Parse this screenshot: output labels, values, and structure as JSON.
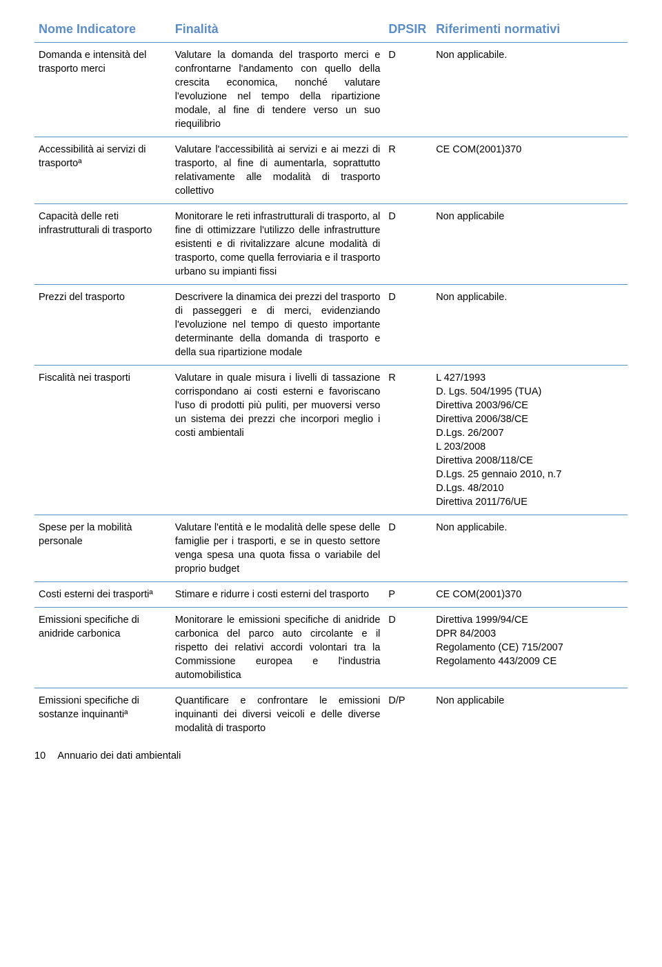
{
  "colors": {
    "header_text": "#5b8dc7",
    "row_border": "#5b8dc7",
    "body_text": "#000000",
    "background": "#ffffff"
  },
  "typography": {
    "header_fontsize_pt": 14,
    "body_fontsize_pt": 11,
    "header_weight": "bold",
    "font_family": "Arial"
  },
  "table": {
    "columns": [
      {
        "key": "nome",
        "label": "Nome Indicatore",
        "width_pct": 23
      },
      {
        "key": "final",
        "label": "Finalità",
        "width_pct": 36
      },
      {
        "key": "dpsir",
        "label": "DPSIR",
        "width_pct": 8
      },
      {
        "key": "rif",
        "label": "Riferimenti normativi",
        "width_pct": 33
      }
    ],
    "rows": [
      {
        "nome": "Domanda e intensità del trasporto merci",
        "final": "Valutare la domanda del trasporto merci e confrontarne l'andamento con quello della crescita economica, nonché valutare l'evoluzione nel tempo della ripartizione modale, al fine di tendere verso un suo riequilibrio",
        "dpsir": "D",
        "rif": "Non applicabile."
      },
      {
        "nome": "Accessibilità ai servizi di trasportoª",
        "final": "Valutare l'accessibilità ai servizi e ai mezzi di trasporto, al fine di aumentarla, soprattutto relativamente alle modalità di trasporto collettivo",
        "dpsir": "R",
        "rif": "CE COM(2001)370"
      },
      {
        "nome": "Capacità delle reti infrastrutturali di trasporto",
        "final": "Monitorare le reti infrastrutturali di trasporto, al fine di ottimizzare l'utilizzo delle infrastrutture esistenti e di rivitalizzare alcune modalità di trasporto, come quella ferroviaria e il trasporto urbano su impianti fissi",
        "dpsir": "D",
        "rif": "Non applicabile"
      },
      {
        "nome": "Prezzi del trasporto",
        "final": "Descrivere la dinamica dei prezzi del trasporto di passeggeri e di merci, evidenziando l'evoluzione nel tempo di questo importante determinante della domanda di trasporto e della sua ripartizione modale",
        "dpsir": "D",
        "rif": "Non applicabile."
      },
      {
        "nome": "Fiscalità nei trasporti",
        "final": "Valutare in quale misura i livelli di tassazione corrispondano ai costi esterni e favoriscano l'uso di prodotti più puliti, per muoversi verso un sistema dei prezzi che incorpori meglio i costi ambientali",
        "dpsir": "R",
        "rif": "L 427/1993\nD. Lgs. 504/1995 (TUA)\nDirettiva 2003/96/CE\nDirettiva 2006/38/CE\nD.Lgs. 26/2007\nL 203/2008\nDirettiva 2008/118/CE\nD.Lgs. 25 gennaio 2010, n.7\nD.Lgs. 48/2010\nDirettiva 2011/76/UE"
      },
      {
        "nome": "Spese per la mobilità personale",
        "final": "Valutare l'entità e le modalità delle spese delle famiglie per i trasporti, e se in questo settore venga spesa una quota fissa o variabile del proprio budget",
        "dpsir": "D",
        "rif": "Non applicabile."
      },
      {
        "nome": "Costi esterni dei trasportiª",
        "final": "Stimare e ridurre i costi esterni del trasporto",
        "dpsir": "P",
        "rif": "CE COM(2001)370"
      },
      {
        "nome": "Emissioni specifiche di anidride carbonica",
        "final": "Monitorare le emissioni specifiche di anidride carbonica del parco auto circolante e il rispetto dei relativi accordi volontari tra la Commissione europea e l'industria automobilistica",
        "dpsir": "D",
        "rif": "Direttiva 1999/94/CE\nDPR 84/2003\nRegolamento (CE) 715/2007\nRegolamento 443/2009 CE"
      },
      {
        "nome": "Emissioni specifiche di sostanze inquinantiª",
        "final": "Quantificare e confrontare le emissioni inquinanti dei diversi veicoli e delle diverse modalità di trasporto",
        "dpsir": "D/P",
        "rif": "Non applicabile"
      }
    ]
  },
  "footer": {
    "page_number": "10",
    "doc_title": "Annuario dei dati ambientali"
  }
}
